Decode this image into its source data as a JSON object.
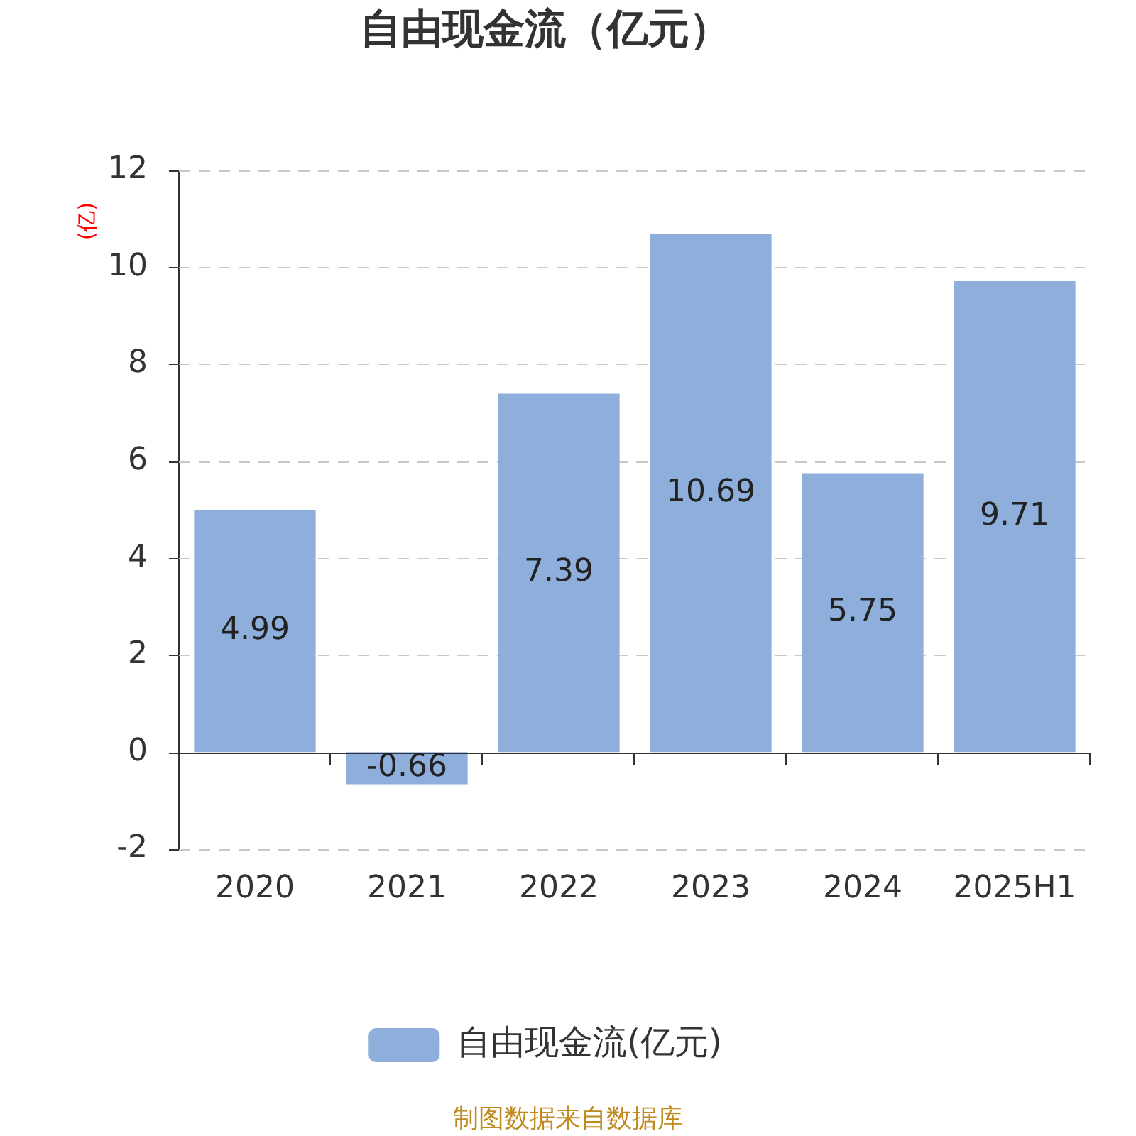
{
  "chart_data": {
    "type": "bar",
    "title": "自由现金流（亿元）",
    "ylabel": "(亿)",
    "categories": [
      "2020",
      "2021",
      "2022",
      "2023",
      "2024",
      "2025H1"
    ],
    "series": [
      {
        "name": "自由现金流(亿元)",
        "color": "#8eaedb",
        "values": [
          4.99,
          -0.66,
          7.39,
          10.69,
          5.75,
          9.71
        ]
      }
    ],
    "ylim": [
      -2,
      12
    ],
    "yticks": [
      -2,
      0,
      2,
      4,
      6,
      8,
      10,
      12
    ],
    "grid": "y",
    "data_labels": true,
    "legend": "bottom",
    "annotations": [
      "制图数据来自数据库"
    ]
  }
}
